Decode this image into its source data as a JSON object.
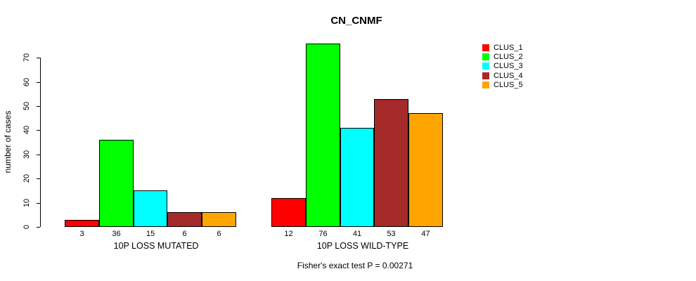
{
  "chart_data": {
    "type": "bar",
    "title": "CN_CNMF",
    "ylabel": "number of cases",
    "xlabel": "",
    "ylim": [
      0,
      70
    ],
    "yticks": [
      0,
      10,
      20,
      30,
      40,
      50,
      60,
      70
    ],
    "grid": false,
    "legend_position": "right-outside",
    "series": [
      {
        "name": "CLUS_1",
        "color": "#FF0000"
      },
      {
        "name": "CLUS_2",
        "color": "#00FF00"
      },
      {
        "name": "CLUS_3",
        "color": "#00FFFF"
      },
      {
        "name": "CLUS_4",
        "color": "#A52A2A"
      },
      {
        "name": "CLUS_5",
        "color": "#FFA500"
      }
    ],
    "groups": [
      {
        "label": "10P LOSS MUTATED",
        "values": [
          3,
          36,
          15,
          6,
          6
        ]
      },
      {
        "label": "10P LOSS WILD-TYPE",
        "values": [
          12,
          76,
          41,
          53,
          47
        ]
      }
    ],
    "footnote": "Fisher's exact test P = 0.00271"
  }
}
